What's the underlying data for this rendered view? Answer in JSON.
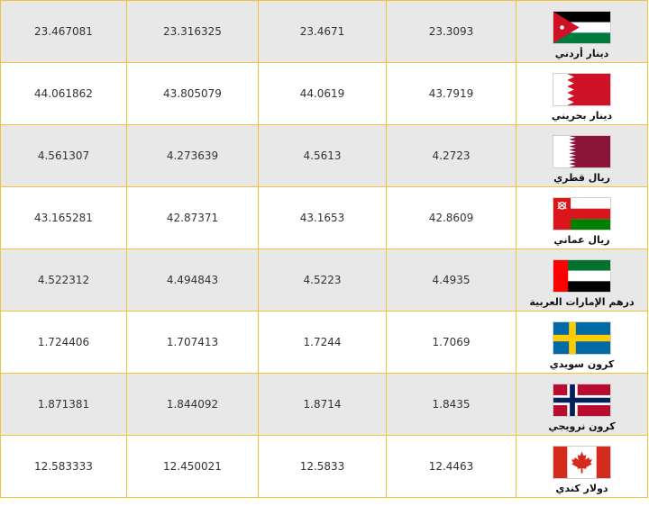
{
  "rows": [
    {
      "col1": "23.467081",
      "col2": "23.316325",
      "col3": "23.4671",
      "col4": "23.3093",
      "currency": "دينار أردني",
      "flag_icon": "jordan-flag-icon"
    },
    {
      "col1": "44.061862",
      "col2": "43.805079",
      "col3": "44.0619",
      "col4": "43.7919",
      "currency": "دينار بحريني",
      "flag_icon": "bahrain-flag-icon"
    },
    {
      "col1": "4.561307",
      "col2": "4.273639",
      "col3": "4.5613",
      "col4": "4.2723",
      "currency": "ريال قطري",
      "flag_icon": "qatar-flag-icon"
    },
    {
      "col1": "43.165281",
      "col2": "42.87371",
      "col3": "43.1653",
      "col4": "42.8609",
      "currency": "ريال عماني",
      "flag_icon": "oman-flag-icon"
    },
    {
      "col1": "4.522312",
      "col2": "4.494843",
      "col3": "4.5223",
      "col4": "4.4935",
      "currency": "درهم الإمارات العربية",
      "flag_icon": "uae-flag-icon"
    },
    {
      "col1": "1.724406",
      "col2": "1.707413",
      "col3": "1.7244",
      "col4": "1.7069",
      "currency": "كرون سويدي",
      "flag_icon": "sweden-flag-icon"
    },
    {
      "col1": "1.871381",
      "col2": "1.844092",
      "col3": "1.8714",
      "col4": "1.8435",
      "currency": "كرون نرويجي",
      "flag_icon": "norway-flag-icon"
    },
    {
      "col1": "12.583333",
      "col2": "12.450021",
      "col3": "12.5833",
      "col4": "12.4463",
      "currency": "دولار كندي",
      "flag_icon": "canada-flag-icon"
    }
  ],
  "colors": {
    "border": "#f2c338",
    "row_alt": "#e8e8e8",
    "row_plain": "#ffffff",
    "text": "#333333"
  }
}
